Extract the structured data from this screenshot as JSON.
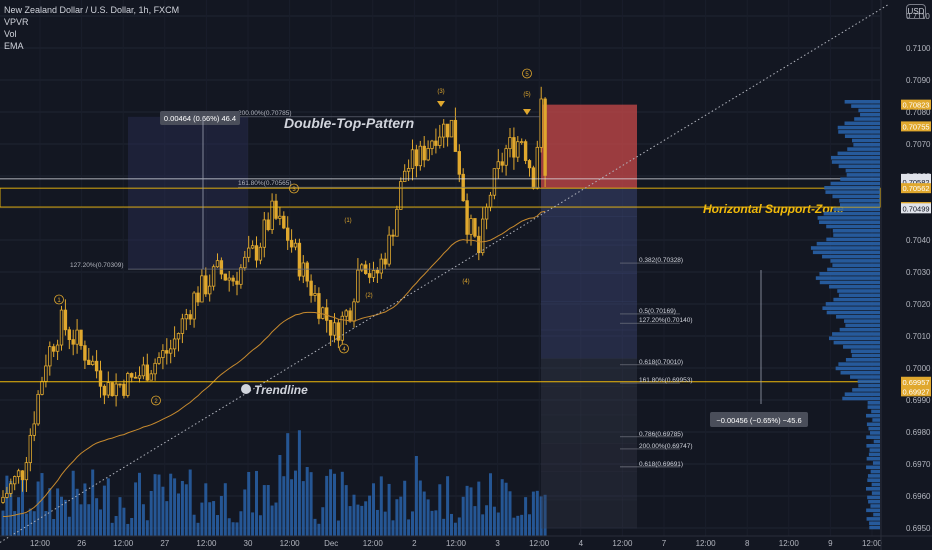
{
  "header": {
    "symbol": "New Zealand Dollar / U.S. Dollar, 1h, FXCM",
    "indicators": [
      "VPVR",
      "Vol",
      "EMA"
    ],
    "currency": "USD"
  },
  "colors": {
    "background": "#131722",
    "candle": "#e0a82e",
    "volume": "#2962a8",
    "ema": "#c78a2e",
    "support_line": "#f0b90b",
    "trendline": "#b2b5be",
    "stop_zone": "#c94a4a",
    "target_zone": "#4a5a8a",
    "price_label": "#e0a82e"
  },
  "chart_data": {
    "type": "candlestick",
    "title": "",
    "xlabel": "",
    "ylabel": "",
    "ylim": [
      0.69475,
      0.7115
    ],
    "x_ticks": [
      "12:00",
      "26",
      "12:00",
      "27",
      "12:00",
      "30",
      "12:00",
      "Dec",
      "12:00",
      "2",
      "12:00",
      "3",
      "12:00",
      "4",
      "12:00",
      "7",
      "12:00",
      "8",
      "12:00",
      "9",
      "12:00"
    ],
    "y_ticks": [
      0.695,
      0.696,
      0.697,
      0.698,
      0.699,
      0.7,
      0.701,
      0.702,
      0.703,
      0.704,
      0.705,
      0.706,
      0.707,
      0.708,
      0.709,
      0.71,
      0.711
    ],
    "price_labels": [
      {
        "value": "0.70823",
        "role": "high"
      },
      {
        "value": "0.70755",
        "role": "level"
      },
      {
        "value": "0.70591",
        "role": "last"
      },
      {
        "value": "54:33",
        "role": "countdown"
      },
      {
        "value": "0.70582",
        "role": "level"
      },
      {
        "value": "0.70562",
        "role": "support"
      },
      {
        "value": "0.70503",
        "role": "support"
      },
      {
        "value": "0.70499",
        "role": "level"
      },
      {
        "value": "0.69957",
        "role": "support"
      },
      {
        "value": "0.69927",
        "role": "level"
      }
    ],
    "fib_levels_top": [
      {
        "label": "200.00%(0.70785)",
        "price": 0.70785
      },
      {
        "label": "161.80%(0.70565)",
        "price": 0.70565
      },
      {
        "label": "127.20%(0.70309)",
        "price": 0.70309
      }
    ],
    "fib_levels_target": [
      {
        "label": "0.382(0.70328)",
        "price": 0.70328
      },
      {
        "label": "0.5(0.70169)",
        "price": 0.70169
      },
      {
        "label": "127.20%(0.70140)",
        "price": 0.7014
      },
      {
        "label": "0.618(0.70010)",
        "price": 0.7001
      },
      {
        "label": "161.80%(0.69953)",
        "price": 0.69953
      },
      {
        "label": "0.786(0.69785)",
        "price": 0.69785
      },
      {
        "label": "200.00%(0.69747)",
        "price": 0.69747
      },
      {
        "label": "0.618(0.69691)",
        "price": 0.69691
      }
    ],
    "annotations": {
      "pattern_title": "Double-Top-Pattern",
      "support_zone": "Horizontal Support-Zone",
      "trendline": "Trendline",
      "measure_up": "0.00464 (0.66%) 46.4",
      "measure_down": "−0.00456 (−0.65%) −45.6"
    },
    "wave_labels": [
      "1",
      "2",
      "3",
      "4",
      "5",
      "(1)",
      "(2)",
      "(3)",
      "(4)",
      "(5)"
    ],
    "support_levels": [
      0.70562,
      0.70503,
      0.69957
    ],
    "candles_count": 140,
    "price_path": [
      [
        0,
        0.6958
      ],
      [
        6,
        0.6968
      ],
      [
        12,
        0.7003
      ],
      [
        16,
        0.7014
      ],
      [
        22,
        0.7005
      ],
      [
        28,
        0.6994
      ],
      [
        34,
        0.6996
      ],
      [
        38,
        0.7
      ],
      [
        44,
        0.7006
      ],
      [
        50,
        0.7022
      ],
      [
        56,
        0.703
      ],
      [
        60,
        0.7028
      ],
      [
        66,
        0.7037
      ],
      [
        70,
        0.7048
      ],
      [
        74,
        0.7041
      ],
      [
        78,
        0.703
      ],
      [
        82,
        0.702
      ],
      [
        86,
        0.7011
      ],
      [
        90,
        0.7019
      ],
      [
        93,
        0.7036
      ],
      [
        96,
        0.7027
      ],
      [
        100,
        0.7039
      ],
      [
        104,
        0.7062
      ],
      [
        108,
        0.7066
      ],
      [
        112,
        0.7074
      ],
      [
        116,
        0.7076
      ],
      [
        118,
        0.7063
      ],
      [
        120,
        0.7046
      ],
      [
        123,
        0.7036
      ],
      [
        126,
        0.7055
      ],
      [
        130,
        0.7068
      ],
      [
        134,
        0.7072
      ],
      [
        137,
        0.706
      ],
      [
        139,
        0.7081
      ],
      [
        140,
        0.7059
      ]
    ]
  }
}
